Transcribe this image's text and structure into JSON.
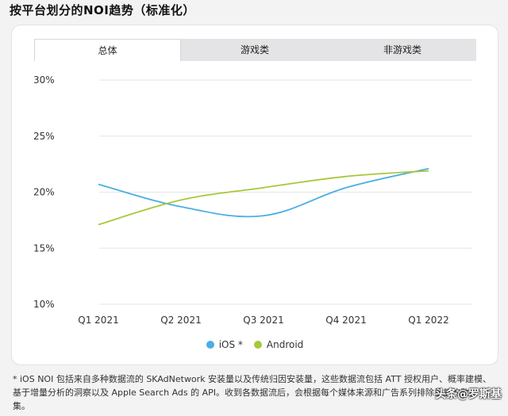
{
  "title": "按平台划分的NOI趋势（标准化）",
  "tabs": [
    {
      "label": "总体",
      "active": true
    },
    {
      "label": "游戏类",
      "active": false
    },
    {
      "label": "非游戏类",
      "active": false
    }
  ],
  "chart_data": {
    "type": "line",
    "categories": [
      "Q1 2021",
      "Q2 2021",
      "Q3 2021",
      "Q4 2021",
      "Q1 2022"
    ],
    "ylim": [
      10,
      30
    ],
    "yticks": [
      "30%",
      "25%",
      "20%",
      "15%",
      "10%"
    ],
    "ytick_values": [
      30,
      25,
      20,
      15,
      10
    ],
    "grid": true,
    "legend_position": "bottom",
    "series": [
      {
        "name": "iOS *",
        "color": "#4aaee4",
        "values": [
          20.7,
          18.7,
          17.9,
          20.4,
          22.1
        ]
      },
      {
        "name": "Android",
        "color": "#a6c83a",
        "values": [
          17.1,
          19.3,
          20.4,
          21.4,
          21.9
        ]
      }
    ]
  },
  "footnote": "* iOS NOI 包括来自多种数据流的 SKAdNetwork 安装量以及传统归因安装量，这些数据流包括 ATT 授权用户、概率建模、基于增量分析的洞察以及 Apple Search Ads 的 API。收到各数据流后，会根据每个媒体来源和广告系列排除重复的数据集。",
  "watermark": "头条@罗斯基"
}
